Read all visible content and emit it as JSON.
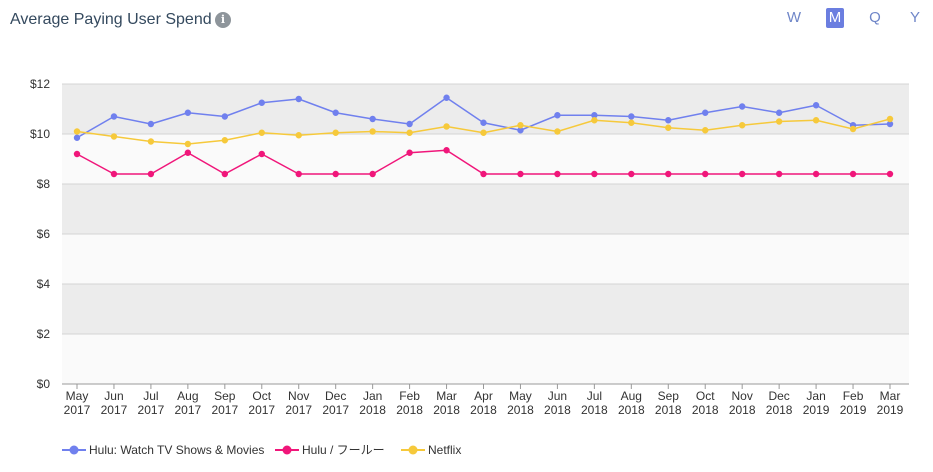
{
  "header": {
    "title": "Average Paying User Spend",
    "info_icon": "info-icon",
    "periods": [
      "W",
      "M",
      "Q",
      "Y"
    ],
    "active_period": "M"
  },
  "colors": {
    "series_1": "#7080ee",
    "series_2": "#f0167a",
    "series_3": "#f6c93b",
    "band_dark": "#ececec",
    "band_light": "#fafafa",
    "grid": "#d4d4d4"
  },
  "chart_data": {
    "type": "line",
    "title": "Average Paying User Spend",
    "xlabel": "",
    "ylabel": "",
    "ylim": [
      0,
      12
    ],
    "y_ticks": [
      "$0",
      "$2",
      "$4",
      "$6",
      "$8",
      "$10",
      "$12"
    ],
    "y_tick_values": [
      0,
      2,
      4,
      6,
      8,
      10,
      12
    ],
    "grid": true,
    "legend_position": "bottom-left",
    "categories": [
      [
        "May",
        "2017"
      ],
      [
        "Jun",
        "2017"
      ],
      [
        "Jul",
        "2017"
      ],
      [
        "Aug",
        "2017"
      ],
      [
        "Sep",
        "2017"
      ],
      [
        "Oct",
        "2017"
      ],
      [
        "Nov",
        "2017"
      ],
      [
        "Dec",
        "2017"
      ],
      [
        "Jan",
        "2018"
      ],
      [
        "Feb",
        "2018"
      ],
      [
        "Mar",
        "2018"
      ],
      [
        "Apr",
        "2018"
      ],
      [
        "May",
        "2018"
      ],
      [
        "Jun",
        "2018"
      ],
      [
        "Jul",
        "2018"
      ],
      [
        "Aug",
        "2018"
      ],
      [
        "Sep",
        "2018"
      ],
      [
        "Oct",
        "2018"
      ],
      [
        "Nov",
        "2018"
      ],
      [
        "Dec",
        "2018"
      ],
      [
        "Jan",
        "2019"
      ],
      [
        "Feb",
        "2019"
      ],
      [
        "Mar",
        "2019"
      ]
    ],
    "series": [
      {
        "name": "Hulu: Watch TV Shows & Movies",
        "color": "#7080ee",
        "values": [
          9.85,
          10.7,
          10.4,
          10.85,
          10.7,
          11.25,
          11.4,
          10.85,
          10.6,
          10.4,
          11.45,
          10.45,
          10.15,
          10.75,
          10.75,
          10.7,
          10.55,
          10.85,
          11.1,
          10.85,
          11.15,
          10.35,
          10.4
        ]
      },
      {
        "name": "Hulu / フールー",
        "color": "#f0167a",
        "values": [
          9.2,
          8.4,
          8.4,
          9.25,
          8.4,
          9.2,
          8.4,
          8.4,
          8.4,
          9.25,
          9.35,
          8.4,
          8.4,
          8.4,
          8.4,
          8.4,
          8.4,
          8.4,
          8.4,
          8.4,
          8.4,
          8.4,
          8.4
        ]
      },
      {
        "name": "Netflix",
        "color": "#f6c93b",
        "values": [
          10.1,
          9.9,
          9.7,
          9.6,
          9.75,
          10.05,
          9.95,
          10.05,
          10.1,
          10.05,
          10.3,
          10.05,
          10.35,
          10.1,
          10.55,
          10.45,
          10.25,
          10.15,
          10.35,
          10.5,
          10.55,
          10.2,
          10.6
        ]
      }
    ]
  }
}
